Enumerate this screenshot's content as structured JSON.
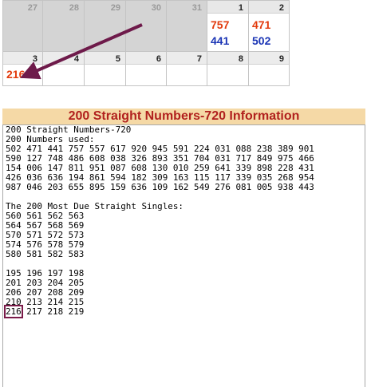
{
  "calendar": {
    "row1": [
      {
        "day": "27",
        "other": true,
        "vals": []
      },
      {
        "day": "28",
        "other": true,
        "vals": []
      },
      {
        "day": "29",
        "other": true,
        "vals": []
      },
      {
        "day": "30",
        "other": true,
        "vals": []
      },
      {
        "day": "31",
        "other": true,
        "vals": []
      },
      {
        "day": "1",
        "other": false,
        "vals": [
          {
            "text": "757",
            "color": "red"
          },
          {
            "text": "441",
            "color": "blue"
          }
        ]
      },
      {
        "day": "2",
        "other": false,
        "vals": [
          {
            "text": "471",
            "color": "red"
          },
          {
            "text": "502",
            "color": "blue"
          }
        ]
      }
    ],
    "row2": [
      {
        "day": "3",
        "other": false,
        "vals": [
          {
            "text": "216",
            "color": "red"
          }
        ]
      },
      {
        "day": "4",
        "other": false,
        "vals": []
      },
      {
        "day": "5",
        "other": false,
        "vals": []
      },
      {
        "day": "6",
        "other": false,
        "vals": []
      },
      {
        "day": "7",
        "other": false,
        "vals": []
      },
      {
        "day": "8",
        "other": false,
        "vals": []
      },
      {
        "day": "9",
        "other": false,
        "vals": []
      }
    ]
  },
  "colors": {
    "red": "#e23a0c",
    "blue": "#1b35b5",
    "arrow": "#6e1a4a",
    "title_bg": "#f5d9a6",
    "title_fg": "#b1211e"
  },
  "info": {
    "title": "200 Straight Numbers-720 Information",
    "lines": [
      "200 Straight Numbers-720",
      "200 Numbers used:",
      "502 471 441 757 557 617 920 945 591 224 031 088 238 389 901",
      "590 127 748 486 608 038 326 893 351 704 031 717 849 975 466",
      "154 006 147 811 951 087 608 130 010 259 641 339 898 228 431",
      "426 036 636 194 861 594 182 309 163 115 117 339 035 268 954",
      "987 046 203 655 895 159 636 109 162 549 276 081 005 938 443",
      "",
      "The 200 Most Due Straight Singles:",
      "560 561 562 563",
      "564 567 568 569",
      "570 571 572 573",
      "574 576 578 579",
      "580 581 582 583",
      "",
      "195 196 197 198",
      "201 203 204 205",
      "206 207 208 209",
      "210 213 214 215"
    ],
    "last_line_highlight": "216",
    "last_line_rest": " 217 218 219"
  }
}
